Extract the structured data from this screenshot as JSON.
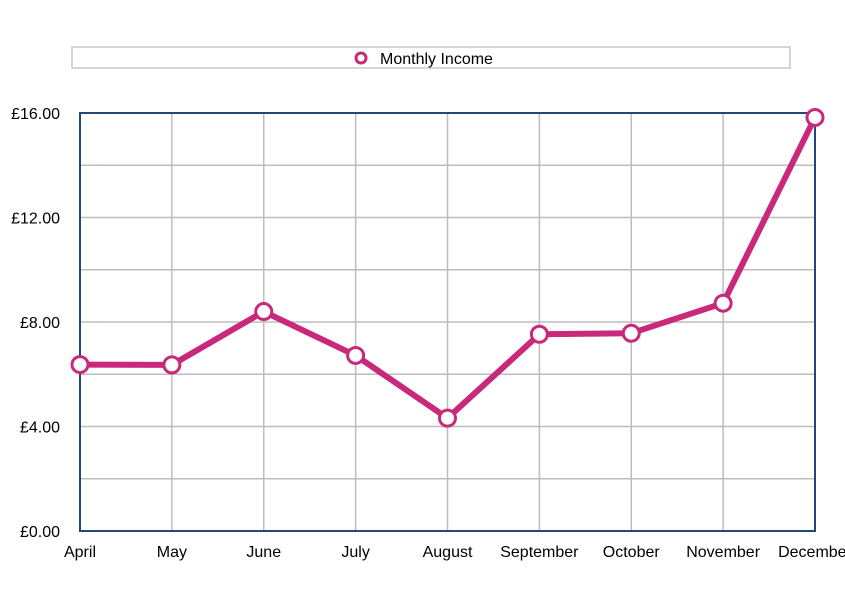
{
  "chart_data": {
    "type": "line",
    "title": "",
    "xlabel": "",
    "ylabel": "",
    "categories": [
      "April",
      "May",
      "June",
      "July",
      "August",
      "September",
      "October",
      "November",
      "December"
    ],
    "series": [
      {
        "name": "Monthly Income",
        "color": "#c9297a",
        "values": [
          6.37,
          6.36,
          8.4,
          6.72,
          4.32,
          7.53,
          7.57,
          8.72,
          15.83
        ]
      }
    ],
    "ylim": [
      0,
      16
    ],
    "y_ticks": [
      0,
      4,
      8,
      12,
      16
    ],
    "y_tick_labels": [
      "£0.00",
      "£4.00",
      "£8.00",
      "£12.00",
      "£16.00"
    ],
    "y_minor_gridlines_step": 2,
    "grid": true,
    "legend": "top",
    "axis_color": "#24477a",
    "grid_color": "#bdbdbd"
  }
}
